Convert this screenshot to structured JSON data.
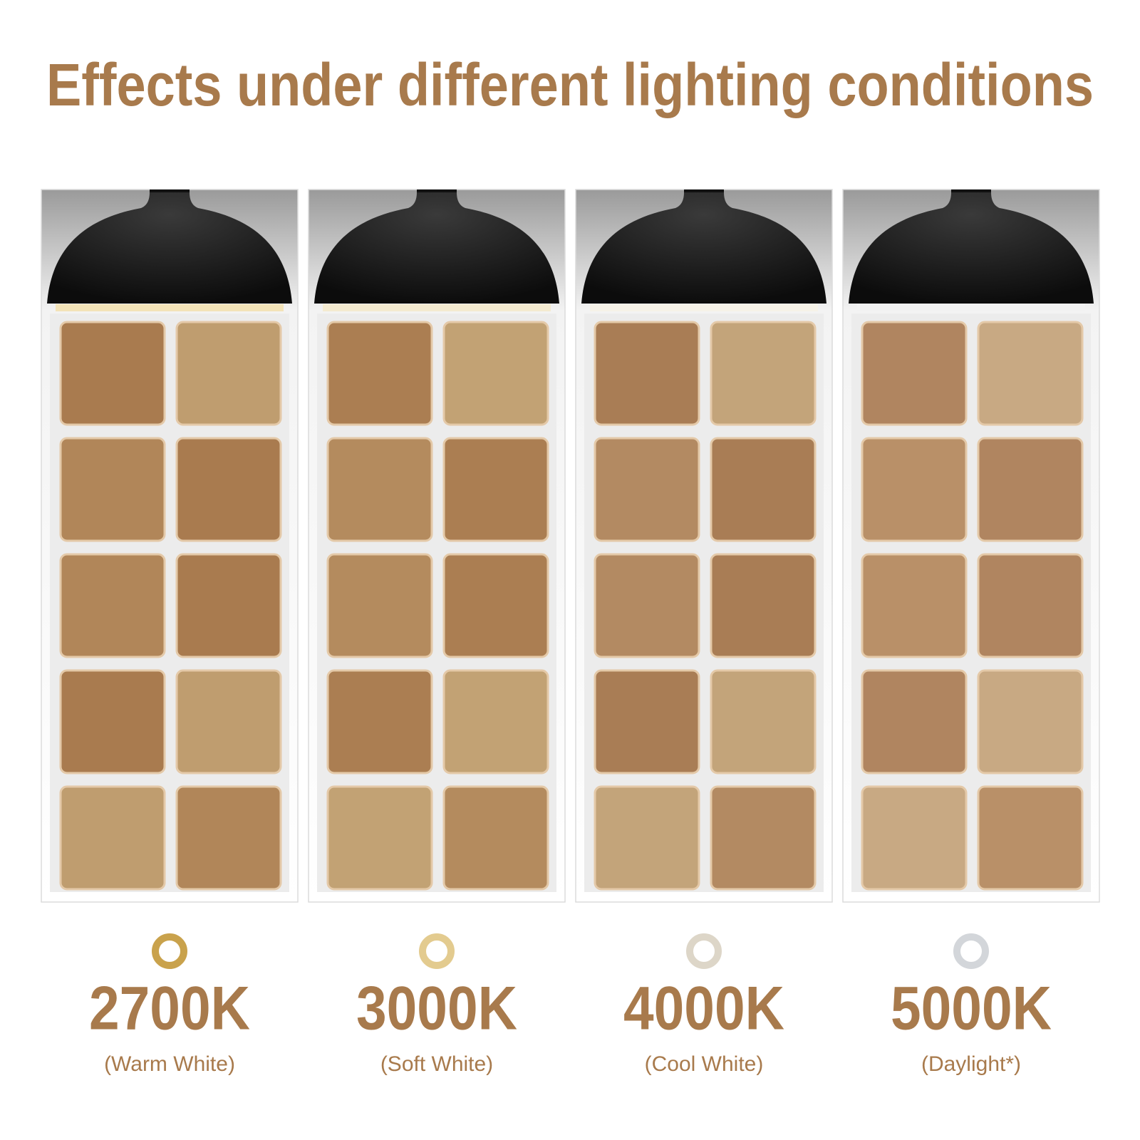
{
  "title": "Effects under different lighting conditions",
  "panels": [
    {
      "temperature": "2700K",
      "description": "(Warm White)"
    },
    {
      "temperature": "3000K",
      "description": "(Soft White)"
    },
    {
      "temperature": "4000K",
      "description": "(Cool White)"
    },
    {
      "temperature": "5000K",
      "description": "(Daylight*)"
    }
  ]
}
